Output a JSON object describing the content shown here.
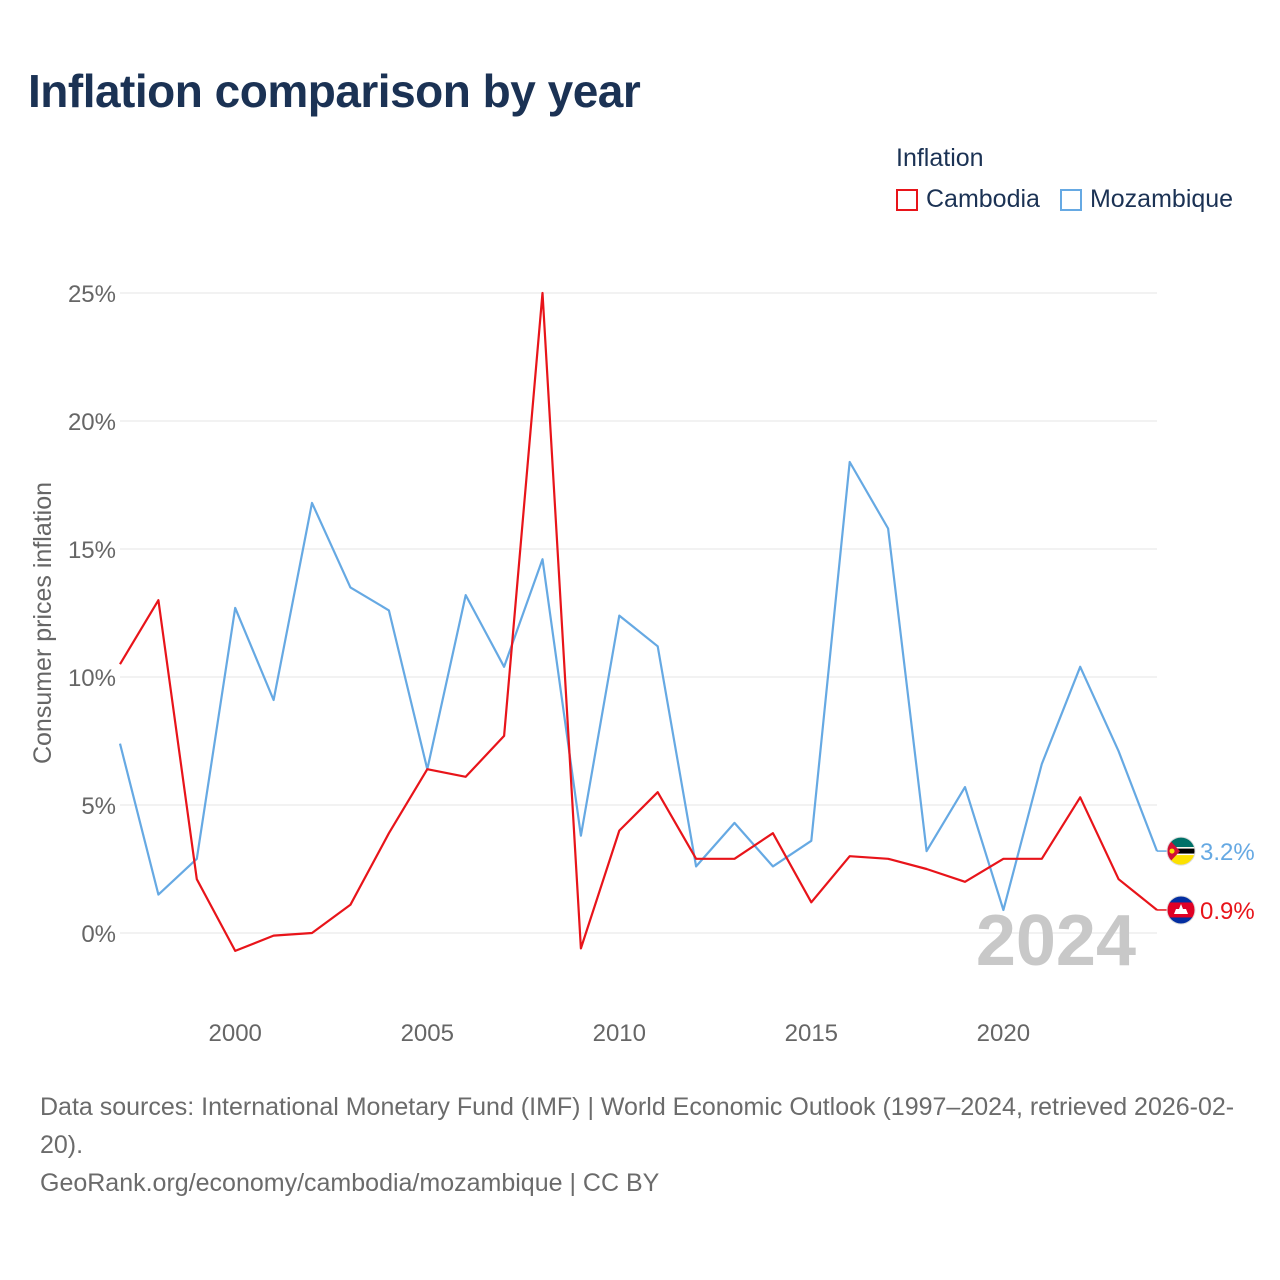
{
  "title": "Inflation comparison by year",
  "legend": {
    "title": "Inflation",
    "items": [
      {
        "name": "Cambodia",
        "color": "#e8141a"
      },
      {
        "name": "Mozambique",
        "color": "#66a9e3"
      }
    ]
  },
  "chart_data": {
    "type": "line",
    "title": "Inflation comparison by year",
    "xlabel": "",
    "ylabel": "Consumer prices inflation",
    "x": [
      1997,
      1998,
      1999,
      2000,
      2001,
      2002,
      2003,
      2004,
      2005,
      2006,
      2007,
      2008,
      2009,
      2010,
      2011,
      2012,
      2013,
      2014,
      2015,
      2016,
      2017,
      2018,
      2019,
      2020,
      2021,
      2022,
      2023,
      2024
    ],
    "xlim": [
      1997,
      2024
    ],
    "ylim": [
      -5,
      26.2
    ],
    "x_ticks": [
      2000,
      2005,
      2010,
      2015,
      2020
    ],
    "y_ticks": [
      0,
      5,
      10,
      15,
      20,
      25
    ],
    "y_tick_labels": [
      "0%",
      "5%",
      "10%",
      "15%",
      "20%",
      "25%"
    ],
    "grid": true,
    "year_label": "2024",
    "series": [
      {
        "name": "Cambodia",
        "color": "#e8141a",
        "values": [
          10.5,
          13.0,
          2.1,
          -0.7,
          -0.1,
          0.0,
          1.1,
          3.9,
          6.4,
          6.1,
          7.7,
          25.0,
          -0.6,
          4.0,
          5.5,
          2.9,
          2.9,
          3.9,
          1.2,
          3.0,
          2.9,
          2.5,
          2.0,
          2.9,
          2.9,
          5.3,
          2.1,
          0.9
        ],
        "end_label": "0.9%"
      },
      {
        "name": "Mozambique",
        "color": "#66a9e3",
        "values": [
          7.4,
          1.5,
          2.9,
          12.7,
          9.1,
          16.8,
          13.5,
          12.6,
          6.4,
          13.2,
          10.4,
          14.6,
          3.8,
          12.4,
          11.2,
          2.6,
          4.3,
          2.6,
          3.6,
          18.4,
          15.8,
          3.2,
          5.7,
          0.9,
          6.6,
          10.4,
          7.1,
          3.2
        ],
        "end_label": "3.2%"
      }
    ]
  },
  "footer": {
    "sources": "Data sources: International Monetary Fund (IMF) | World Economic Outlook (1997–2024, retrieved 2026-02-20).",
    "credit": "GeoRank.org/economy/cambodia/mozambique | CC BY"
  }
}
